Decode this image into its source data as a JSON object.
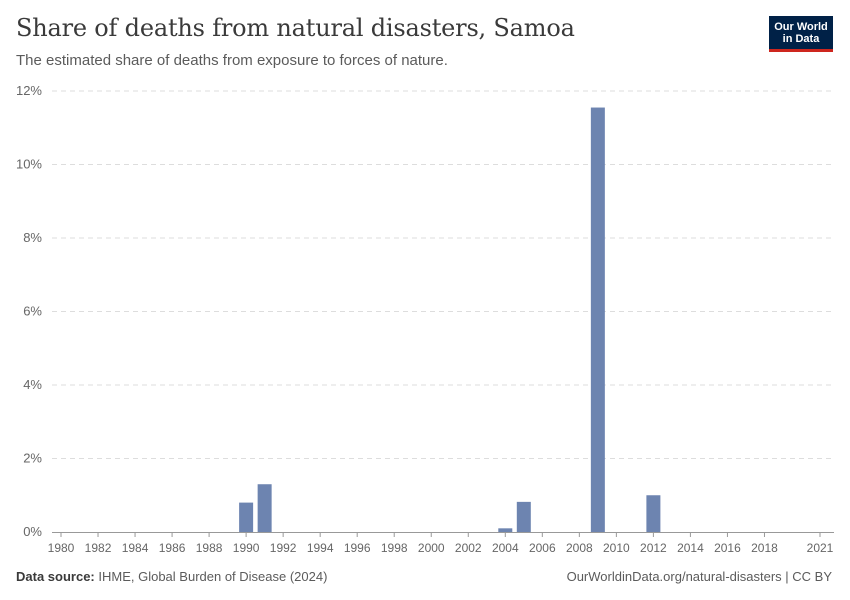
{
  "header": {
    "title": "Share of deaths from natural disasters, Samoa",
    "subtitle": "The estimated share of deaths from exposure to forces of nature."
  },
  "logo": {
    "line1": "Our World",
    "line2": "in Data"
  },
  "footer": {
    "source_label": "Data source:",
    "source_text": "IHME, Global Burden of Disease (2024)",
    "url_text": "OurWorldinData.org/natural-disasters | CC BY"
  },
  "colors": {
    "bar": "#6d84b0",
    "grid": "#dddddd",
    "axis": "#999999",
    "tick_text": "#666666"
  },
  "chart_data": {
    "type": "bar",
    "title": "Share of deaths from natural disasters, Samoa",
    "xlabel": "",
    "ylabel": "",
    "x_range": [
      1980,
      2021
    ],
    "ylim": [
      0,
      12
    ],
    "y_ticks": [
      0,
      2,
      4,
      6,
      8,
      10,
      12
    ],
    "y_tick_labels": [
      "0%",
      "2%",
      "4%",
      "6%",
      "8%",
      "10%",
      "12%"
    ],
    "x_ticks": [
      1980,
      1982,
      1984,
      1986,
      1988,
      1990,
      1992,
      1994,
      1996,
      1998,
      2000,
      2002,
      2004,
      2006,
      2008,
      2010,
      2012,
      2014,
      2016,
      2018,
      2021
    ],
    "x_tick_labels": [
      "1980",
      "1982",
      "1984",
      "1986",
      "1988",
      "1990",
      "1992",
      "1994",
      "1996",
      "1998",
      "2000",
      "2002",
      "2004",
      "2006",
      "2008",
      "2010",
      "2012",
      "2014",
      "2016",
      "2018",
      "2021"
    ],
    "grid": true,
    "series": [
      {
        "name": "Samoa",
        "points": [
          {
            "year": 1990,
            "value": 0.8
          },
          {
            "year": 1991,
            "value": 1.3
          },
          {
            "year": 2004,
            "value": 0.1
          },
          {
            "year": 2005,
            "value": 0.82
          },
          {
            "year": 2009,
            "value": 11.55
          },
          {
            "year": 2012,
            "value": 1.0
          }
        ]
      }
    ]
  }
}
